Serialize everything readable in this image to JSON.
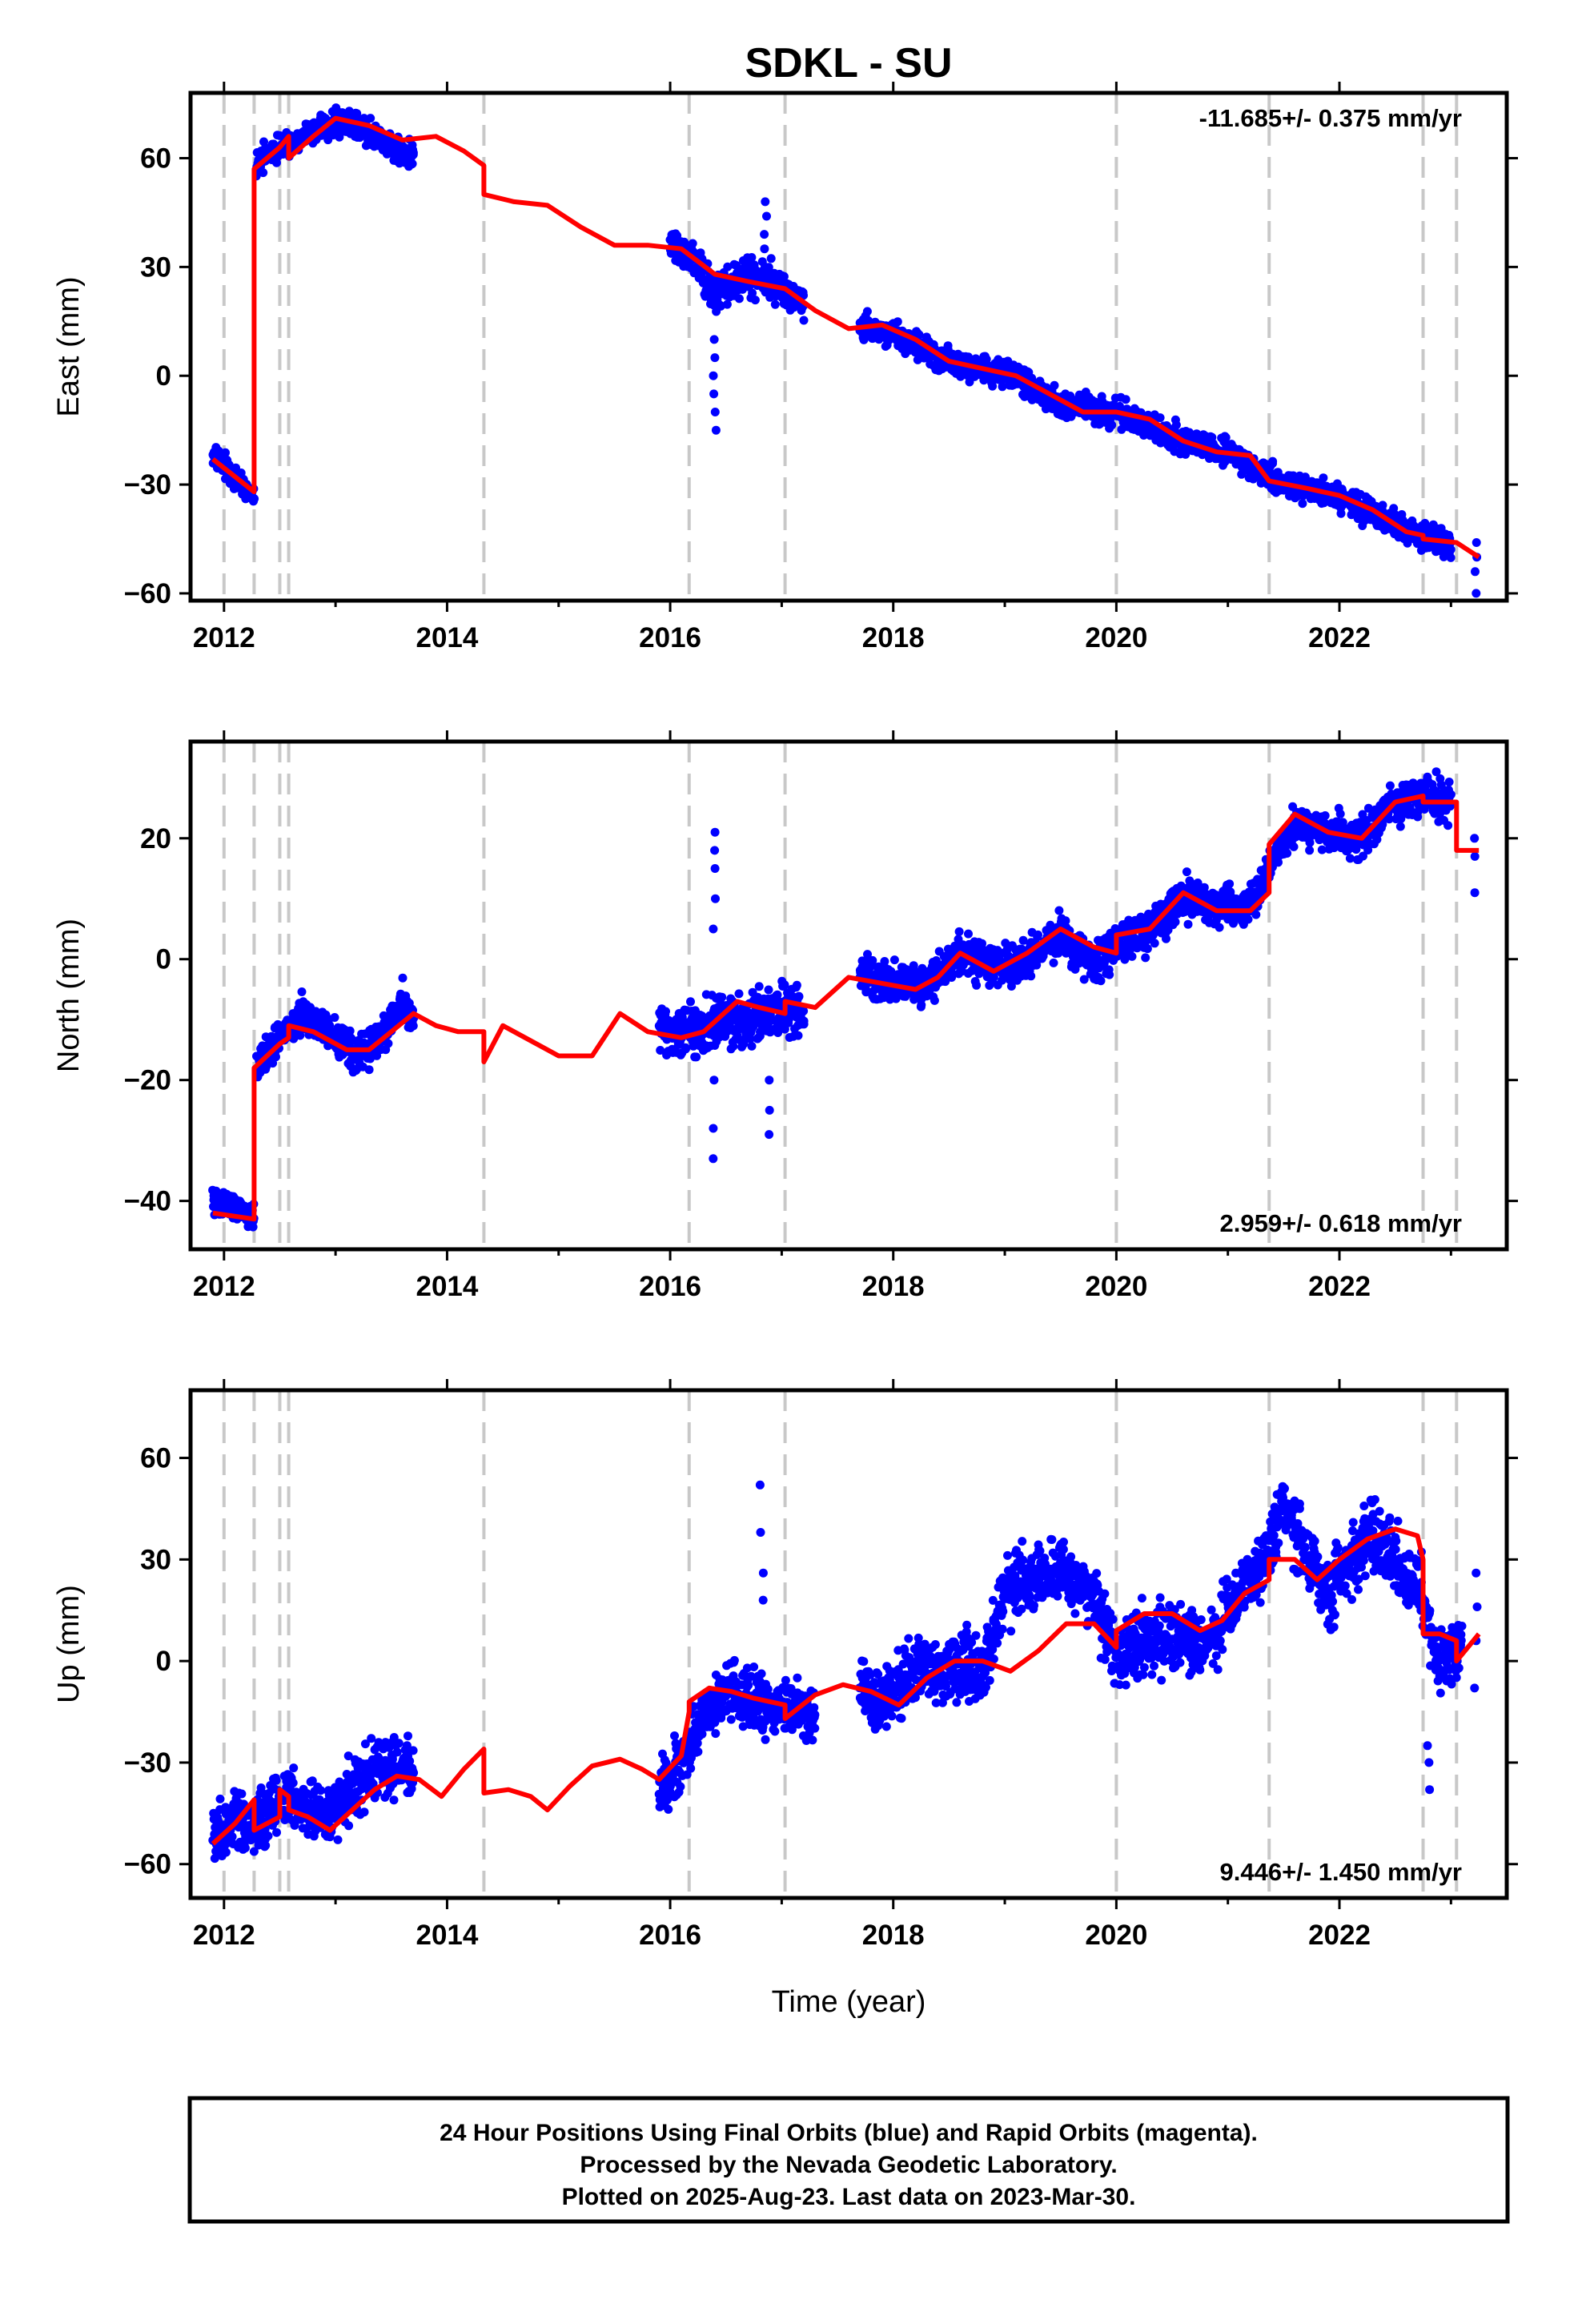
{
  "title": "SDKL - SU",
  "xlabel": "Time (year)",
  "footer": {
    "lines": [
      "24 Hour Positions Using Final Orbits (blue) and Rapid Orbits (magenta).",
      "Processed by the Nevada Geodetic Laboratory.",
      "Plotted on 2025-Aug-23. Last data on 2023-Mar-30."
    ]
  },
  "colors": {
    "final_orbits": "#0000ff",
    "model": "#ff0000",
    "event_lines": "#c8c8c8",
    "axes": "#000000"
  },
  "chart_data": [
    {
      "type": "scatter",
      "component": "east",
      "ylabel": "East (mm)",
      "rate": "-11.685+/- 0.375 mm/yr",
      "rate_position": "top-right",
      "xlim": [
        2011.7,
        2023.5
      ],
      "ylim": [
        -62,
        78
      ],
      "xticks": [
        2012,
        2014,
        2016,
        2018,
        2020,
        2022
      ],
      "yticks": [
        -60,
        -30,
        0,
        30,
        60
      ],
      "event_lines": [
        2012.0,
        2012.27,
        2012.5,
        2012.58,
        2014.33,
        2016.17,
        2017.03,
        2020.0,
        2021.37,
        2022.75,
        2023.05
      ],
      "data_segments": [
        {
          "x": [
            2011.9,
            2012.0,
            2012.1,
            2012.2,
            2012.27
          ],
          "y": [
            -22,
            -25,
            -28,
            -31,
            -34
          ],
          "noise": 2
        },
        {
          "x": [
            2012.29,
            2012.4,
            2012.58,
            2012.8,
            2013.0,
            2013.2,
            2013.4,
            2013.6,
            2013.7
          ],
          "y": [
            58,
            62,
            64,
            68,
            70,
            69,
            65,
            62,
            60
          ],
          "noise": 2.5
        },
        {
          "x": [
            2016.0,
            2016.2,
            2016.4,
            2016.6,
            2016.8,
            2017.0,
            2017.2
          ],
          "y": [
            36,
            33,
            22,
            26,
            28,
            24,
            20
          ],
          "noise": 3.5
        },
        {
          "x": [
            2017.7,
            2018.0,
            2018.5,
            2019.0,
            2019.5,
            2020.0,
            2020.5,
            2021.0,
            2021.5,
            2022.0,
            2022.5,
            2022.8,
            2023.0
          ],
          "y": [
            13,
            12,
            4,
            1,
            -8,
            -10,
            -17,
            -21,
            -30,
            -33,
            -41,
            -45,
            -47
          ],
          "noise": 2.5
        }
      ],
      "outliers": [
        {
          "x": 2016.4,
          "y": [
            -15,
            -10,
            -5,
            0,
            5,
            10
          ]
        },
        {
          "x": 2016.85,
          "y": [
            48,
            44,
            39,
            35
          ]
        },
        {
          "x": 2023.22,
          "y": [
            -46,
            -50,
            -54,
            -60
          ]
        }
      ],
      "model": {
        "x": [
          2011.9,
          2012.27,
          2012.27,
          2012.5,
          2012.58,
          2012.58,
          2012.8,
          2013.0,
          2013.3,
          2013.6,
          2013.9,
          2014.15,
          2014.33,
          2014.33,
          2014.6,
          2014.9,
          2015.2,
          2015.5,
          2015.8,
          2016.1,
          2016.4,
          2016.7,
          2017.03,
          2017.03,
          2017.3,
          2017.6,
          2017.9,
          2018.2,
          2018.5,
          2018.8,
          2019.1,
          2019.4,
          2019.7,
          2020.0,
          2020.3,
          2020.6,
          2020.9,
          2021.2,
          2021.37,
          2021.37,
          2021.7,
          2022.0,
          2022.3,
          2022.6,
          2022.75,
          2022.75,
          2023.05,
          2023.05,
          2023.25
        ],
        "y": [
          -23,
          -32,
          57,
          63,
          66,
          60,
          66,
          71,
          69,
          65,
          66,
          62,
          58,
          50,
          48,
          47,
          41,
          36,
          36,
          35,
          28,
          26,
          24,
          24,
          18,
          13,
          14,
          10,
          4,
          2,
          0,
          -5,
          -10,
          -10,
          -12,
          -18,
          -21,
          -22,
          -29,
          -29,
          -31,
          -33,
          -37,
          -43,
          -44,
          -45,
          -46,
          -46,
          -50
        ]
      }
    },
    {
      "type": "scatter",
      "component": "north",
      "ylabel": "North (mm)",
      "rate": "2.959+/- 0.618 mm/yr",
      "rate_position": "bottom-right",
      "xlim": [
        2011.7,
        2023.5
      ],
      "ylim": [
        -48,
        36
      ],
      "xticks": [
        2012,
        2014,
        2016,
        2018,
        2020,
        2022
      ],
      "yticks": [
        -40,
        -20,
        0,
        20
      ],
      "event_lines": [
        2012.0,
        2012.27,
        2012.5,
        2012.58,
        2014.33,
        2016.17,
        2017.03,
        2020.0,
        2021.37,
        2022.75,
        2023.05
      ],
      "data_segments": [
        {
          "x": [
            2011.9,
            2012.1,
            2012.27
          ],
          "y": [
            -40,
            -41,
            -43
          ],
          "noise": 1.5
        },
        {
          "x": [
            2012.29,
            2012.5,
            2012.7,
            2013.0,
            2013.2,
            2013.4,
            2013.6,
            2013.7
          ],
          "y": [
            -18,
            -13,
            -9,
            -13,
            -16,
            -13,
            -7,
            -10
          ],
          "noise": 2
        },
        {
          "x": [
            2015.9,
            2016.1,
            2016.3,
            2016.7,
            2016.9,
            2017.0,
            2017.2
          ],
          "y": [
            -12,
            -12,
            -11,
            -10,
            -9,
            -8,
            -9
          ],
          "noise": 3
        },
        {
          "x": [
            2017.7,
            2018.0,
            2018.3,
            2018.6,
            2018.9,
            2019.2,
            2019.5,
            2019.8,
            2020.0,
            2020.3,
            2020.6,
            2020.9,
            2021.2,
            2021.4,
            2021.6,
            2021.9,
            2022.2,
            2022.5,
            2022.8,
            2023.0
          ],
          "y": [
            -2,
            -4,
            -4,
            1,
            -1,
            0,
            4,
            -1,
            2,
            5,
            10,
            9,
            9,
            16,
            22,
            21,
            20,
            26,
            27,
            26
          ],
          "noise": 2.2
        }
      ],
      "outliers": [
        {
          "x": 2016.4,
          "y": [
            21,
            18,
            15,
            10,
            5,
            -20,
            -28,
            -33
          ]
        },
        {
          "x": 2016.9,
          "y": [
            -20,
            -25,
            -29
          ]
        },
        {
          "x": 2023.22,
          "y": [
            20,
            17,
            11
          ]
        }
      ],
      "model": {
        "x": [
          2011.9,
          2012.27,
          2012.27,
          2012.5,
          2012.58,
          2012.58,
          2012.8,
          2013.1,
          2013.3,
          2013.5,
          2013.7,
          2013.9,
          2014.1,
          2014.33,
          2014.33,
          2014.5,
          2014.7,
          2015.0,
          2015.3,
          2015.55,
          2015.8,
          2016.1,
          2016.3,
          2016.6,
          2016.8,
          2017.03,
          2017.03,
          2017.3,
          2017.6,
          2017.9,
          2018.2,
          2018.4,
          2018.6,
          2018.9,
          2019.2,
          2019.5,
          2019.8,
          2020.0,
          2020.0,
          2020.3,
          2020.6,
          2020.9,
          2021.2,
          2021.37,
          2021.37,
          2021.6,
          2021.9,
          2022.2,
          2022.5,
          2022.75,
          2022.75,
          2023.05,
          2023.05,
          2023.25
        ],
        "y": [
          -42,
          -43,
          -18,
          -14,
          -13,
          -11,
          -12,
          -15,
          -15,
          -12,
          -9,
          -11,
          -12,
          -12,
          -17,
          -11,
          -13,
          -16,
          -16,
          -9,
          -12,
          -13,
          -12,
          -7,
          -8,
          -9,
          -7,
          -8,
          -3,
          -4,
          -5,
          -3,
          1,
          -2,
          1,
          5,
          2,
          1,
          4,
          5,
          11,
          8,
          8,
          11,
          19,
          24,
          21,
          20,
          26,
          27,
          26,
          26,
          18,
          18
        ]
      }
    },
    {
      "type": "scatter",
      "component": "up",
      "ylabel": "Up (mm)",
      "rate": "9.446+/- 1.450 mm/yr",
      "rate_position": "bottom-right",
      "xlim": [
        2011.7,
        2023.5
      ],
      "ylim": [
        -70,
        80
      ],
      "xticks": [
        2012,
        2014,
        2016,
        2018,
        2020,
        2022
      ],
      "yticks": [
        -60,
        -30,
        0,
        30,
        60
      ],
      "event_lines": [
        2012.0,
        2012.27,
        2012.5,
        2012.58,
        2014.33,
        2016.17,
        2017.03,
        2020.0,
        2021.37,
        2022.75,
        2023.05
      ],
      "data_segments": [
        {
          "x": [
            2011.9,
            2012.1,
            2012.3,
            2012.5,
            2012.7,
            2012.9,
            2013.1,
            2013.3,
            2013.5,
            2013.7
          ],
          "y": [
            -52,
            -48,
            -48,
            -40,
            -42,
            -45,
            -40,
            -35,
            -30,
            -32
          ],
          "noise": 6
        },
        {
          "x": [
            2015.9,
            2016.1,
            2016.3,
            2016.5,
            2016.7,
            2016.9,
            2017.1,
            2017.3
          ],
          "y": [
            -38,
            -30,
            -18,
            -10,
            -12,
            -13,
            -14,
            -16
          ],
          "noise": 6
        },
        {
          "x": [
            2017.7,
            2017.9,
            2018.2,
            2018.5,
            2018.8,
            2019.0,
            2019.2,
            2019.4,
            2019.6,
            2019.8,
            2020.0,
            2020.2,
            2020.5,
            2020.8,
            2021.0,
            2021.3,
            2021.5,
            2021.7,
            2021.9,
            2022.1,
            2022.3,
            2022.5,
            2022.7,
            2022.9,
            2023.1
          ],
          "y": [
            -10,
            -12,
            -3,
            -2,
            -4,
            22,
            23,
            26,
            24,
            19,
            2,
            6,
            8,
            4,
            15,
            28,
            46,
            32,
            20,
            30,
            38,
            30,
            22,
            -2,
            6
          ],
          "noise": 7
        }
      ],
      "outliers": [
        {
          "x": 2016.82,
          "y": [
            52,
            38,
            26,
            18
          ]
        },
        {
          "x": 2022.8,
          "y": [
            -38,
            -30,
            -25
          ]
        },
        {
          "x": 2023.22,
          "y": [
            26,
            16,
            6,
            -8
          ]
        }
      ],
      "model": {
        "x": [
          2011.9,
          2012.1,
          2012.27,
          2012.27,
          2012.5,
          2012.5,
          2012.58,
          2012.58,
          2012.75,
          2012.95,
          2013.15,
          2013.35,
          2013.55,
          2013.75,
          2013.95,
          2014.15,
          2014.33,
          2014.33,
          2014.55,
          2014.75,
          2014.9,
          2015.1,
          2015.3,
          2015.55,
          2015.75,
          2015.9,
          2016.1,
          2016.17,
          2016.17,
          2016.35,
          2016.55,
          2016.75,
          2017.03,
          2017.03,
          2017.3,
          2017.55,
          2017.8,
          2018.05,
          2018.3,
          2018.55,
          2018.8,
          2019.05,
          2019.3,
          2019.55,
          2019.8,
          2020.0,
          2020.0,
          2020.25,
          2020.5,
          2020.75,
          2020.95,
          2021.15,
          2021.37,
          2021.37,
          2021.6,
          2021.8,
          2022.0,
          2022.25,
          2022.5,
          2022.7,
          2022.75,
          2022.75,
          2022.9,
          2023.05,
          2023.05,
          2023.25
        ],
        "y": [
          -54,
          -48,
          -41,
          -50,
          -46,
          -38,
          -40,
          -44,
          -46,
          -50,
          -44,
          -38,
          -34,
          -35,
          -40,
          -32,
          -26,
          -39,
          -38,
          -40,
          -44,
          -37,
          -31,
          -29,
          -32,
          -35,
          -28,
          -15,
          -12,
          -8,
          -9,
          -11,
          -13,
          -17,
          -10,
          -7,
          -9,
          -13,
          -5,
          0,
          0,
          -3,
          3,
          11,
          11,
          4,
          9,
          14,
          14,
          9,
          12,
          20,
          24,
          30,
          30,
          24,
          30,
          36,
          39,
          37,
          30,
          8,
          8,
          6,
          0,
          8
        ]
      }
    }
  ]
}
